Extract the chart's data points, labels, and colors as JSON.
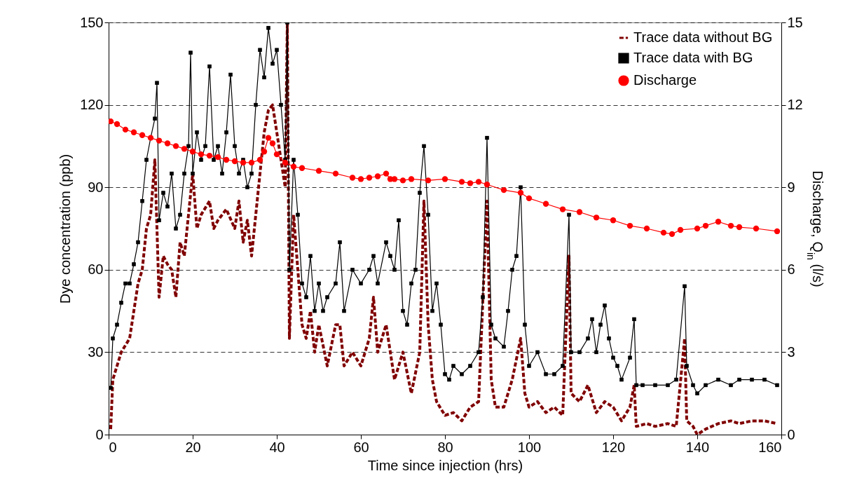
{
  "chart_data": {
    "type": "line",
    "xlabel": "Time since injection (hrs)",
    "ylabel": "Dye concentration (ppb)",
    "y2label": "Discharge, Q$_{in}$ (l/s)",
    "xlim": [
      0,
      160
    ],
    "xticks": [
      0,
      20,
      40,
      60,
      80,
      100,
      120,
      140,
      160
    ],
    "ylim": [
      0,
      150
    ],
    "yticks": [
      0,
      30,
      60,
      90,
      120,
      150
    ],
    "y2lim": [
      0,
      15
    ],
    "y2ticks": [
      0,
      3,
      6,
      9,
      12,
      15
    ],
    "grid": "y",
    "legend": "top right",
    "series": [
      {
        "name": "Trace data without BG",
        "color": "#800000",
        "line_style": "dashed",
        "marker": "none",
        "x": [
          0.5,
          1,
          2,
          3,
          5,
          7,
          8,
          9,
          10,
          11,
          12,
          13,
          14,
          15,
          16,
          17,
          18,
          19,
          20,
          21,
          22,
          24,
          25,
          26,
          28,
          30,
          31,
          32,
          33,
          34,
          35,
          36,
          37,
          38,
          39,
          40,
          41,
          42,
          42.5,
          43,
          44,
          45,
          46,
          47,
          48,
          49,
          50,
          52,
          54,
          55,
          56,
          58,
          60,
          62,
          63,
          64,
          66,
          68,
          70,
          72,
          74,
          75,
          76,
          77,
          78,
          80,
          82,
          84,
          86,
          88,
          90,
          91,
          92,
          94,
          96,
          98,
          99,
          100,
          102,
          104,
          106,
          108,
          109.5,
          110,
          112,
          114,
          116,
          118,
          120,
          122,
          124,
          125,
          125.5,
          128,
          130,
          133,
          135,
          137,
          137.5,
          139,
          140,
          142,
          145,
          148,
          150,
          153,
          156,
          159
        ],
        "values": [
          2,
          20,
          25,
          30,
          35,
          55,
          60,
          75,
          80,
          100,
          50,
          65,
          62,
          60,
          50,
          70,
          65,
          80,
          95,
          75,
          80,
          85,
          75,
          78,
          82,
          75,
          85,
          70,
          78,
          65,
          80,
          95,
          110,
          118,
          120,
          110,
          100,
          90,
          150,
          35,
          80,
          60,
          40,
          35,
          45,
          30,
          40,
          25,
          40,
          40,
          25,
          30,
          25,
          35,
          50,
          30,
          40,
          20,
          30,
          15,
          30,
          85,
          40,
          20,
          12,
          7,
          8,
          5,
          10,
          12,
          85,
          20,
          10,
          10,
          20,
          35,
          15,
          10,
          12,
          8,
          10,
          7,
          65,
          15,
          12,
          18,
          8,
          12,
          10,
          5,
          10,
          18,
          3,
          4,
          3,
          4,
          3,
          35,
          5,
          3,
          0,
          2,
          4,
          5,
          4,
          5,
          5,
          4
        ]
      },
      {
        "name": "Trace data with BG",
        "color": "#000000",
        "line_style": "solid",
        "marker": "square",
        "x": [
          0.5,
          1,
          2,
          3,
          4,
          5,
          6,
          7,
          8,
          9,
          10,
          11,
          11.5,
          12,
          13,
          14,
          15,
          16,
          17,
          18,
          19,
          19.5,
          20,
          21,
          22,
          23,
          24,
          25,
          26,
          27,
          28,
          29,
          30,
          31,
          32,
          33,
          34,
          35,
          36,
          37,
          38,
          39,
          40,
          41,
          42,
          42.5,
          43,
          44,
          45,
          46,
          47,
          48,
          49,
          50,
          51,
          52,
          54,
          55,
          56,
          58,
          60,
          62,
          63,
          64,
          66,
          67,
          68,
          69,
          70,
          71,
          72,
          73,
          74,
          75,
          76,
          77,
          78,
          79,
          80,
          81,
          82,
          84,
          86,
          88,
          89,
          90,
          91,
          92,
          94,
          95,
          96,
          97,
          98,
          99,
          100,
          102,
          104,
          106,
          108,
          109.5,
          110,
          112,
          114,
          115,
          116,
          117,
          118,
          119,
          120,
          121,
          122,
          124,
          125,
          125.5,
          127,
          130,
          133,
          135,
          137,
          137.5,
          139,
          140,
          142,
          145,
          148,
          150,
          153,
          156,
          159
        ],
        "values": [
          17,
          35,
          40,
          48,
          55,
          55,
          62,
          70,
          85,
          100,
          108,
          115,
          128,
          78,
          88,
          83,
          95,
          75,
          80,
          95,
          105,
          139,
          95,
          110,
          100,
          105,
          134,
          100,
          105,
          95,
          110,
          131,
          105,
          95,
          100,
          90,
          95,
          120,
          140,
          130,
          148,
          135,
          140,
          120,
          100,
          150,
          60,
          100,
          80,
          55,
          50,
          65,
          45,
          55,
          45,
          50,
          55,
          70,
          45,
          60,
          55,
          60,
          65,
          55,
          70,
          65,
          60,
          78,
          45,
          40,
          55,
          60,
          88,
          105,
          80,
          45,
          55,
          40,
          22,
          20,
          25,
          22,
          25,
          30,
          50,
          108,
          40,
          35,
          32,
          45,
          60,
          65,
          90,
          40,
          25,
          30,
          22,
          22,
          25,
          80,
          30,
          30,
          35,
          42,
          30,
          40,
          47,
          35,
          28,
          25,
          20,
          28,
          42,
          18,
          18,
          18,
          18,
          20,
          54,
          25,
          18,
          15,
          18,
          20,
          18,
          20,
          20,
          20,
          18
        ]
      },
      {
        "name": "Discharge",
        "color": "#ff0000",
        "line_style": "solid",
        "marker": "circle",
        "axis": "y2",
        "x": [
          0.5,
          2,
          4,
          6,
          8,
          10,
          12,
          14,
          16,
          18,
          20,
          22,
          24,
          26,
          28,
          30,
          32,
          34,
          36,
          37,
          38,
          39,
          40,
          42,
          44,
          46,
          50,
          54,
          58,
          60,
          62,
          64,
          66,
          67,
          68,
          70,
          72,
          76,
          80,
          84,
          86,
          88,
          90,
          94,
          98,
          100,
          104,
          108,
          112,
          116,
          120,
          124,
          128,
          132,
          134,
          136,
          140,
          142,
          145,
          148,
          150,
          154,
          159
        ],
        "values": [
          11.4,
          11.3,
          11.1,
          11.0,
          10.9,
          10.8,
          10.7,
          10.6,
          10.5,
          10.4,
          10.3,
          10.2,
          10.15,
          10.1,
          10.0,
          9.95,
          9.9,
          9.9,
          10.0,
          10.3,
          10.8,
          10.6,
          10.2,
          9.9,
          9.75,
          9.7,
          9.6,
          9.5,
          9.35,
          9.3,
          9.35,
          9.4,
          9.5,
          9.3,
          9.3,
          9.25,
          9.3,
          9.25,
          9.3,
          9.2,
          9.15,
          9.2,
          9.1,
          8.9,
          8.8,
          8.6,
          8.4,
          8.2,
          8.1,
          7.9,
          7.8,
          7.6,
          7.5,
          7.35,
          7.3,
          7.45,
          7.5,
          7.6,
          7.75,
          7.6,
          7.55,
          7.5,
          7.4
        ]
      }
    ]
  }
}
